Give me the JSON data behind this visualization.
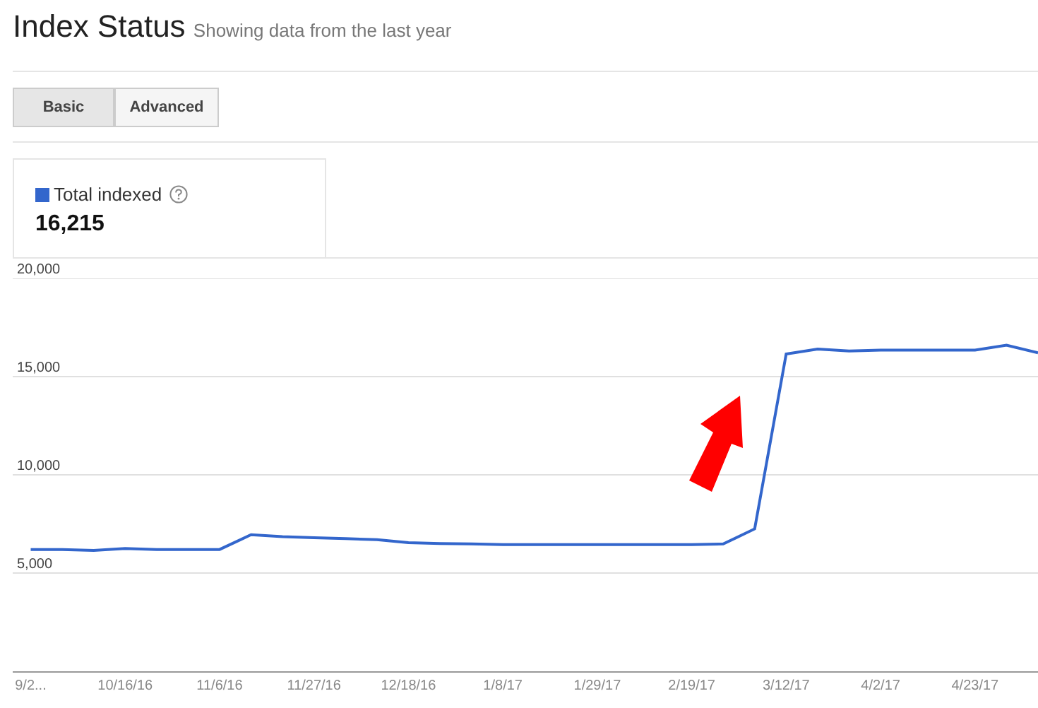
{
  "chart_data": {
    "type": "line",
    "title": "Index Status",
    "subtitle": "Showing data from the last year",
    "annotations": [
      "Basic",
      "Advanced",
      "16,215"
    ],
    "x": [
      "2016-09-25",
      "2016-10-02",
      "2016-10-09",
      "2016-10-16",
      "2016-10-23",
      "2016-10-30",
      "2016-11-06",
      "2016-11-13",
      "2016-11-20",
      "2016-11-27",
      "2016-12-04",
      "2016-12-11",
      "2016-12-18",
      "2016-12-25",
      "2017-01-01",
      "2017-01-08",
      "2017-01-15",
      "2017-01-22",
      "2017-01-29",
      "2017-02-05",
      "2017-02-12",
      "2017-02-19",
      "2017-02-26",
      "2017-03-05",
      "2017-03-12",
      "2017-03-19",
      "2017-03-26",
      "2017-04-02",
      "2017-04-09",
      "2017-04-16",
      "2017-04-23",
      "2017-04-30",
      "2017-05-07"
    ],
    "series": [
      {
        "name": "Total indexed",
        "color": "#3366cc",
        "values": [
          6200,
          6200,
          6150,
          6250,
          6200,
          6200,
          6200,
          6950,
          6850,
          6800,
          6750,
          6700,
          6550,
          6500,
          6480,
          6450,
          6450,
          6450,
          6450,
          6450,
          6450,
          6450,
          6480,
          7250,
          16150,
          16400,
          16300,
          16350,
          16350,
          16350,
          16350,
          16600,
          16215
        ]
      }
    ],
    "xlim": [
      "2016-09-21",
      "2017-05-07"
    ],
    "xticks": [
      {
        "value": "2016-09-25",
        "label": "9/2..."
      },
      {
        "value": "2016-10-16",
        "label": "10/16/16"
      },
      {
        "value": "2016-11-06",
        "label": "11/6/16"
      },
      {
        "value": "2016-11-27",
        "label": "11/27/16"
      },
      {
        "value": "2016-12-18",
        "label": "12/18/16"
      },
      {
        "value": "2017-01-08",
        "label": "1/8/17"
      },
      {
        "value": "2017-01-29",
        "label": "1/29/17"
      },
      {
        "value": "2017-02-19",
        "label": "2/19/17"
      },
      {
        "value": "2017-03-12",
        "label": "3/12/17"
      },
      {
        "value": "2017-04-02",
        "label": "4/2/17"
      },
      {
        "value": "2017-04-23",
        "label": "4/23/17"
      }
    ],
    "ylim": [
      0,
      20000
    ],
    "yticks": [
      {
        "value": 5000,
        "label": "5,000"
      },
      {
        "value": 10000,
        "label": "10,000"
      },
      {
        "value": 15000,
        "label": "15,000"
      },
      {
        "value": 20000,
        "label": "20,000"
      }
    ],
    "grid": "y",
    "legend": "top left",
    "marker": "none",
    "line_style": "solid"
  }
}
